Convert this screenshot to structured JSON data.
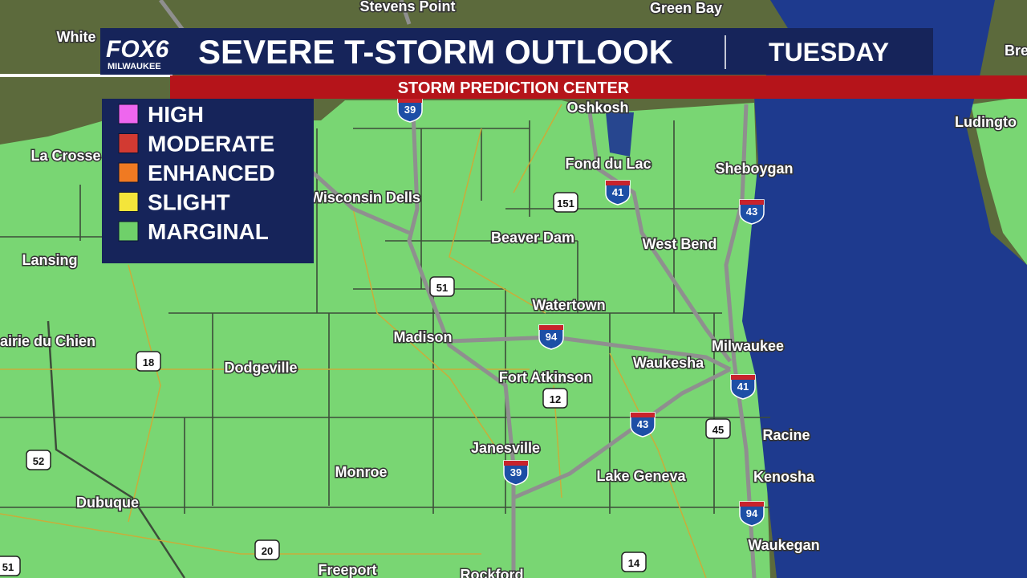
{
  "header": {
    "logo": "FOX6",
    "logo_sub": "MILWAUKEE",
    "title": "SEVERE T-STORM OUTLOOK",
    "day": "TUESDAY",
    "subtitle": "STORM PREDICTION CENTER"
  },
  "legend": [
    {
      "label": "HIGH",
      "color": "#ee66ee"
    },
    {
      "label": "MODERATE",
      "color": "#d23a32"
    },
    {
      "label": "ENHANCED",
      "color": "#f07a22"
    },
    {
      "label": "SLIGHT",
      "color": "#f4e53a"
    },
    {
      "label": "MARGINAL",
      "color": "#6fd06a"
    }
  ],
  "cities": [
    {
      "name": "Stevens Point"
    },
    {
      "name": "Green Bay"
    },
    {
      "name": "White"
    },
    {
      "name": "Bre"
    },
    {
      "name": "Oshkosh"
    },
    {
      "name": "La Crosse"
    },
    {
      "name": "Fond du Lac"
    },
    {
      "name": "Sheboygan"
    },
    {
      "name": "Ludingto"
    },
    {
      "name": "Wisconsin Dells"
    },
    {
      "name": "Beaver Dam"
    },
    {
      "name": "West Bend"
    },
    {
      "name": "Lansing"
    },
    {
      "name": "Watertown"
    },
    {
      "name": "Madison"
    },
    {
      "name": "Milwaukee"
    },
    {
      "name": "airie du Chien"
    },
    {
      "name": "Dodgeville"
    },
    {
      "name": "Waukesha"
    },
    {
      "name": "Fort Atkinson"
    },
    {
      "name": "Racine"
    },
    {
      "name": "Janesville"
    },
    {
      "name": "Monroe"
    },
    {
      "name": "Lake Geneva"
    },
    {
      "name": "Kenosha"
    },
    {
      "name": "Dubuque"
    },
    {
      "name": "Waukegan"
    },
    {
      "name": "Freeport"
    },
    {
      "name": "Rockford"
    }
  ],
  "shields": [
    {
      "label": "39",
      "kind": "interstate"
    },
    {
      "label": "151",
      "kind": "us"
    },
    {
      "label": "41",
      "kind": "interstate"
    },
    {
      "label": "43",
      "kind": "interstate"
    },
    {
      "label": "51",
      "kind": "us"
    },
    {
      "label": "94",
      "kind": "interstate"
    },
    {
      "label": "18",
      "kind": "us"
    },
    {
      "label": "12",
      "kind": "us"
    },
    {
      "label": "41",
      "kind": "interstate"
    },
    {
      "label": "43",
      "kind": "interstate"
    },
    {
      "label": "45",
      "kind": "us"
    },
    {
      "label": "52",
      "kind": "us"
    },
    {
      "label": "39",
      "kind": "interstate"
    },
    {
      "label": "94",
      "kind": "interstate"
    },
    {
      "label": "20",
      "kind": "us"
    },
    {
      "label": "14",
      "kind": "us"
    },
    {
      "label": "51",
      "kind": "us"
    }
  ]
}
